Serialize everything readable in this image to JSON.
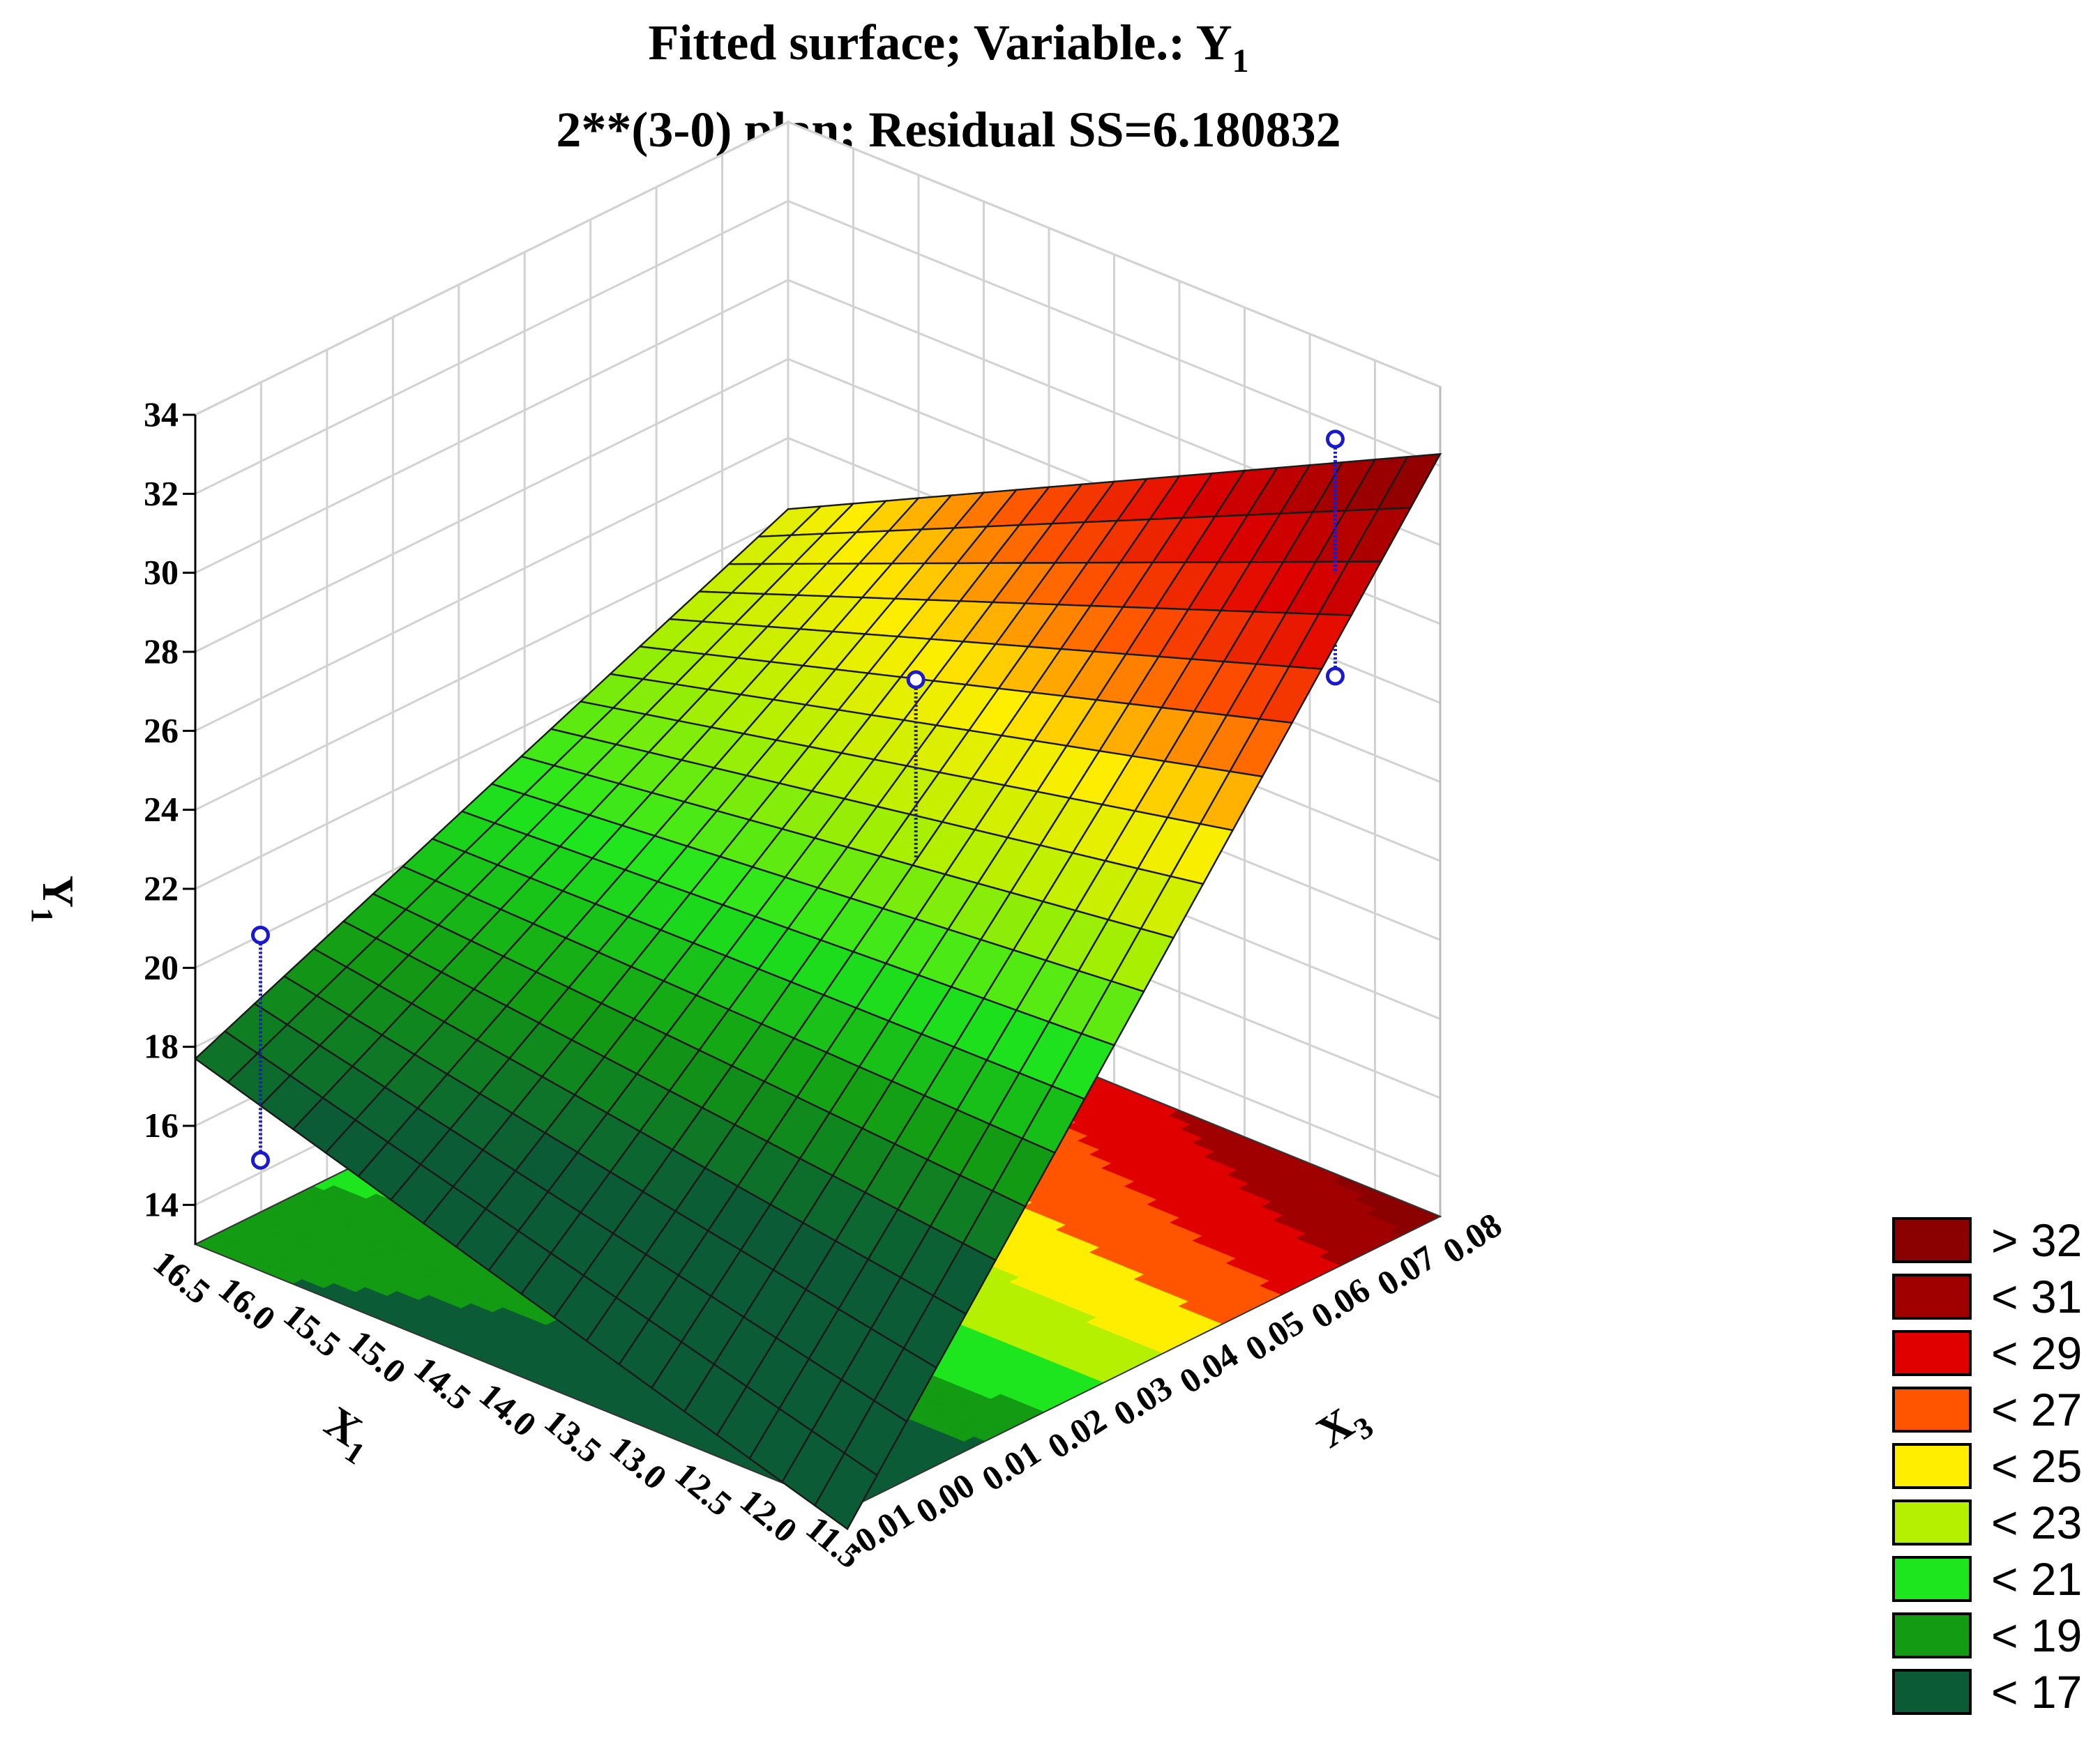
{
  "chart_data": {
    "type": "surface3d",
    "title_line1_main": "Fitted  surface; Variable.: Y",
    "title_line1_sub": "1",
    "title_line2": "2**(3-0) plan; Residual SS=6.180832",
    "zlabel_main": "Y",
    "zlabel_sub": "1",
    "xlabel_main": "X",
    "xlabel_sub": "1",
    "ylabel_main": "X",
    "ylabel_sub": "3",
    "x_ticks": [
      "16.5",
      "16.0",
      "15.5",
      "15.0",
      "14.5",
      "14.0",
      "13.5",
      "13.0",
      "12.5",
      "12.0",
      "11.5"
    ],
    "x_tick_values": [
      16.5,
      16.0,
      15.5,
      15.0,
      14.5,
      14.0,
      13.5,
      13.0,
      12.5,
      12.0,
      11.5
    ],
    "y_ticks": [
      "-0.01",
      "0.00",
      "0.01",
      "0.02",
      "0.03",
      "0.04",
      "0.05",
      "0.06",
      "0.07",
      "0.08"
    ],
    "y_tick_values": [
      -0.01,
      0.0,
      0.01,
      0.02,
      0.03,
      0.04,
      0.05,
      0.06,
      0.07,
      0.08
    ],
    "z_ticks": [
      "14",
      "16",
      "18",
      "20",
      "22",
      "24",
      "26",
      "28",
      "30",
      "32",
      "34"
    ],
    "z_tick_values": [
      14,
      16,
      18,
      20,
      22,
      24,
      26,
      28,
      30,
      32,
      34
    ],
    "xlim": [
      16.5,
      11.5
    ],
    "ylim": [
      -0.01,
      0.08
    ],
    "zlim": [
      13,
      34
    ],
    "surface_corners": {
      "x16.5_y-0.01": 17.7,
      "x16.5_y0.08": 24.2,
      "x11.5_y-0.01": 12.5,
      "x11.5_y0.08": 32.3
    },
    "observed_points": [
      {
        "x": 16.0,
        "y": -0.01,
        "z": 21.5
      },
      {
        "x": 16.0,
        "y": -0.01,
        "z": 15.8
      },
      {
        "x": 13.5,
        "y": 0.04,
        "z": 27.2
      },
      {
        "x": 12.2,
        "y": 0.0,
        "z": 13.2
      },
      {
        "x": 11.8,
        "y": 0.07,
        "z": 33.1
      },
      {
        "x": 11.8,
        "y": 0.07,
        "z": 27.1
      }
    ],
    "legend": [
      {
        "label": "> 32",
        "color": "#8b0000"
      },
      {
        "label": "< 31",
        "color": "#a00000"
      },
      {
        "label": "< 29",
        "color": "#e00000"
      },
      {
        "label": "< 27",
        "color": "#ff5500"
      },
      {
        "label": "< 25",
        "color": "#ffee00"
      },
      {
        "label": "< 23",
        "color": "#b4f000"
      },
      {
        "label": "< 21",
        "color": "#1ee61e"
      },
      {
        "label": "< 19",
        "color": "#139b13"
      },
      {
        "label": "< 17",
        "color": "#0b5c36"
      }
    ],
    "grid": true,
    "legend_position": "bottom-right"
  }
}
